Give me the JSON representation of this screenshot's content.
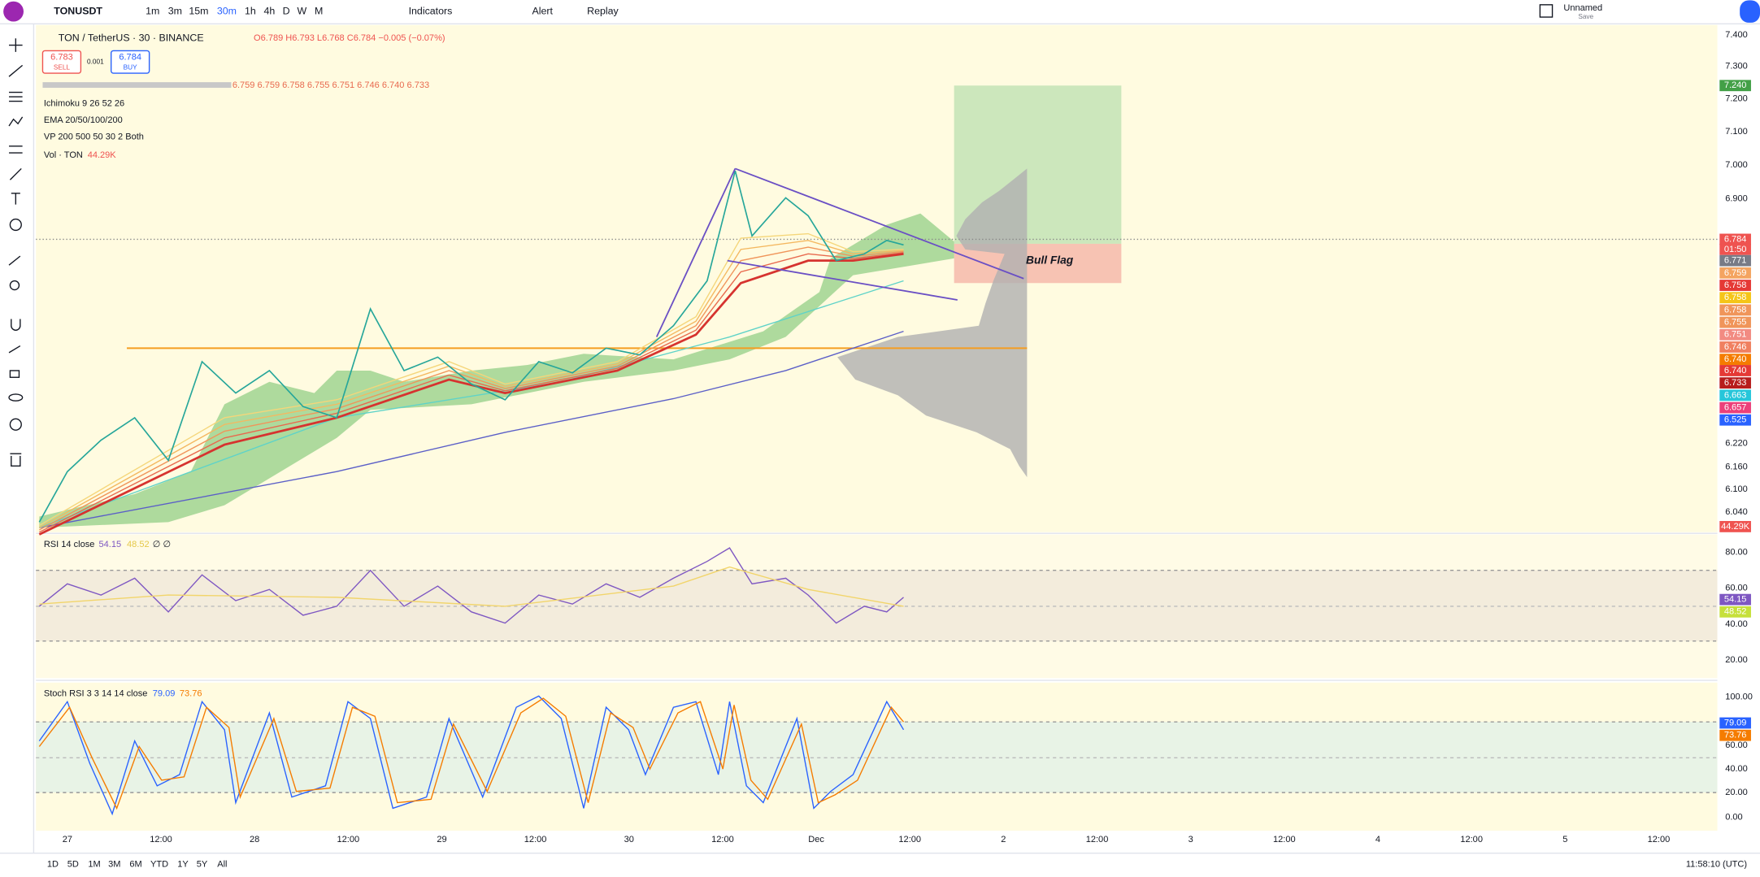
{
  "toolbar": {
    "symbol": "TONUSDT",
    "intervals": [
      "1m",
      "3m",
      "15m",
      "30m",
      "1h",
      "4h",
      "D",
      "W",
      "M"
    ],
    "indicators": "Indicators",
    "alert": "Alert",
    "replay": "Replay",
    "layout_name": "Unnamed",
    "save": "Save"
  },
  "legend": {
    "title": "TON / TetherUS · 30 · BINANCE",
    "ohlc": "O6.789 H6.793 L6.768 C6.784 −0.005 (−0.07%)",
    "sell_price": "6.783",
    "sell": "SELL",
    "spread": "0.001",
    "buy_price": "6.784",
    "buy": "BUY",
    "ma_values": "6.759 6.759 6.758 6.755 6.751 6.746 6.740 6.733",
    "ichimoku": "Ichimoku 9 26 52 26",
    "ema": "EMA 20/50/100/200",
    "ema_values": [
      "6.758",
      "6.740",
      "6.663",
      "6.525"
    ],
    "vp": "VP 200 500 50 30 2 Both",
    "vol": "Vol · TON",
    "vol_value": "44.29K"
  },
  "annotation": "Bull Flag",
  "price_axis": [
    "7.400",
    "7.300",
    "7.200",
    "7.100",
    "7.000",
    "6.900",
    "6.220",
    "6.160",
    "6.100",
    "6.040"
  ],
  "price_badges": [
    "7.240",
    "6.784",
    "01:50",
    "6.771",
    "6.759",
    "6.758",
    "6.758",
    "6.758",
    "6.755",
    "6.751",
    "6.746",
    "6.740",
    "6.740",
    "6.733",
    "6.663",
    "6.657",
    "6.525",
    "44.29K"
  ],
  "rsi": {
    "title": "RSI 14 close",
    "value": "54.15",
    "ma": "48.52",
    "extra": "∅ ∅",
    "axis": [
      "80.00",
      "60.00",
      "40.00",
      "20.00"
    ],
    "badges": [
      "54.15",
      "48.52"
    ]
  },
  "stoch": {
    "title": "Stoch RSI 3 3 14 14 close",
    "k": "79.09",
    "d": "73.76",
    "axis": [
      "100.00",
      "80.00",
      "60.00",
      "40.00",
      "20.00",
      "0.00"
    ],
    "badges": [
      "79.09",
      "73.76"
    ]
  },
  "time_axis": [
    "27",
    "12:00",
    "28",
    "12:00",
    "29",
    "12:00",
    "30",
    "12:00",
    "Dec",
    "12:00",
    "2",
    "12:00",
    "3",
    "12:00",
    "4",
    "12:00",
    "5",
    "12:00"
  ],
  "bottom": {
    "ranges": [
      "1D",
      "5D",
      "1M",
      "3M",
      "6M",
      "YTD",
      "1Y",
      "5Y",
      "All"
    ],
    "clock": "11:58:10 (UTC)"
  }
}
